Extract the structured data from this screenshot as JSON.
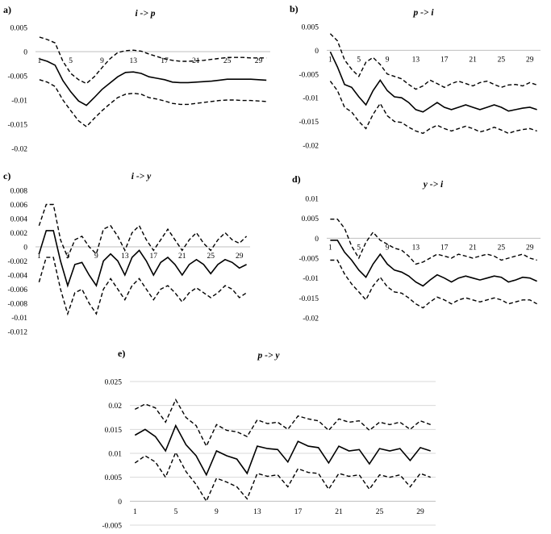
{
  "chart_data": [
    {
      "type": "line",
      "label": "a)",
      "title": "i -> p",
      "x": [
        1,
        2,
        3,
        4,
        5,
        6,
        7,
        8,
        9,
        10,
        11,
        12,
        13,
        14,
        15,
        16,
        17,
        18,
        19,
        20,
        21,
        22,
        23,
        24,
        25,
        26,
        27,
        28,
        29,
        30
      ],
      "x_tick_labels": [
        "5",
        "9",
        "13",
        "17",
        "21",
        "25",
        "29"
      ],
      "x_tick_values": [
        5,
        9,
        13,
        17,
        21,
        25,
        29
      ],
      "first_x_label": "1",
      "ylim": [
        -0.02,
        0.005
      ],
      "y_tick_values": [
        0.005,
        0,
        -0.005,
        -0.01,
        -0.015,
        -0.02
      ],
      "y_tick_labels": [
        "0.005",
        "0",
        "-0.005",
        "-0.01",
        "-0.015",
        "-0.02"
      ],
      "series": [
        {
          "name": "upper",
          "style": "dashed",
          "values": [
            0.003,
            0.0025,
            0.0018,
            -0.002,
            -0.0045,
            -0.0058,
            -0.0066,
            -0.0052,
            -0.0033,
            -0.0015,
            -0.0002,
            0.0002,
            0.0003,
            0.0001,
            -0.0005,
            -0.001,
            -0.0015,
            -0.0018,
            -0.002,
            -0.002,
            -0.0019,
            -0.0018,
            -0.0016,
            -0.0014,
            -0.0012,
            -0.0012,
            -0.0012,
            -0.0013,
            -0.0013,
            -0.0013
          ]
        },
        {
          "name": "estimate",
          "style": "solid",
          "values": [
            -0.0015,
            -0.002,
            -0.0028,
            -0.006,
            -0.0083,
            -0.0102,
            -0.0111,
            -0.0095,
            -0.0078,
            -0.0065,
            -0.0052,
            -0.0043,
            -0.0042,
            -0.0045,
            -0.0052,
            -0.0055,
            -0.0058,
            -0.0063,
            -0.0064,
            -0.0064,
            -0.0063,
            -0.0062,
            -0.0061,
            -0.0059,
            -0.0057,
            -0.0057,
            -0.0057,
            -0.0057,
            -0.0058,
            -0.0059
          ]
        },
        {
          "name": "lower",
          "style": "dashed",
          "values": [
            -0.0058,
            -0.0063,
            -0.0072,
            -0.01,
            -0.0122,
            -0.0143,
            -0.0155,
            -0.0138,
            -0.0122,
            -0.0108,
            -0.0095,
            -0.0088,
            -0.0086,
            -0.0088,
            -0.0095,
            -0.0098,
            -0.0102,
            -0.0107,
            -0.0109,
            -0.0109,
            -0.0107,
            -0.0105,
            -0.0103,
            -0.0101,
            -0.01,
            -0.01,
            -0.0101,
            -0.0101,
            -0.0102,
            -0.0103
          ]
        }
      ]
    },
    {
      "type": "line",
      "label": "b)",
      "title": "p -> i",
      "x": [
        1,
        2,
        3,
        4,
        5,
        6,
        7,
        8,
        9,
        10,
        11,
        12,
        13,
        14,
        15,
        16,
        17,
        18,
        19,
        20,
        21,
        22,
        23,
        24,
        25,
        26,
        27,
        28,
        29,
        30
      ],
      "x_tick_labels": [
        "5",
        "9",
        "13",
        "17",
        "21",
        "25",
        "29"
      ],
      "x_tick_values": [
        5,
        9,
        13,
        17,
        21,
        25,
        29
      ],
      "first_x_label": "1",
      "ylim": [
        -0.02,
        0.005
      ],
      "y_tick_values": [
        0.005,
        0,
        -0.005,
        -0.01,
        -0.015,
        -0.02
      ],
      "y_tick_labels": [
        "0.005",
        "0",
        "-0.005",
        "-0.01",
        "-0.015",
        "-0.02"
      ],
      "series": [
        {
          "name": "upper",
          "style": "dashed",
          "values": [
            0.0035,
            0.002,
            -0.002,
            -0.004,
            -0.0055,
            -0.0025,
            -0.0015,
            -0.003,
            -0.005,
            -0.0055,
            -0.006,
            -0.0072,
            -0.0082,
            -0.0075,
            -0.0063,
            -0.007,
            -0.0078,
            -0.007,
            -0.0065,
            -0.007,
            -0.0075,
            -0.0068,
            -0.0065,
            -0.0072,
            -0.0078,
            -0.0073,
            -0.0072,
            -0.0075,
            -0.0068,
            -0.0073
          ]
        },
        {
          "name": "estimate",
          "style": "solid",
          "values": [
            -0.0003,
            -0.0035,
            -0.0072,
            -0.0078,
            -0.0098,
            -0.0115,
            -0.0085,
            -0.0063,
            -0.0085,
            -0.0098,
            -0.01,
            -0.011,
            -0.0125,
            -0.013,
            -0.012,
            -0.011,
            -0.012,
            -0.0125,
            -0.012,
            -0.0115,
            -0.012,
            -0.0125,
            -0.012,
            -0.0115,
            -0.012,
            -0.0128,
            -0.0125,
            -0.0122,
            -0.012,
            -0.0125
          ]
        },
        {
          "name": "lower",
          "style": "dashed",
          "values": [
            -0.0065,
            -0.0085,
            -0.012,
            -0.013,
            -0.015,
            -0.0165,
            -0.0135,
            -0.0112,
            -0.0138,
            -0.015,
            -0.0152,
            -0.0162,
            -0.017,
            -0.0175,
            -0.0165,
            -0.0158,
            -0.0165,
            -0.017,
            -0.0165,
            -0.016,
            -0.0165,
            -0.0172,
            -0.0168,
            -0.0162,
            -0.0168,
            -0.0175,
            -0.017,
            -0.0167,
            -0.0165,
            -0.017
          ]
        }
      ]
    },
    {
      "type": "line",
      "label": "c)",
      "title": "i -> y",
      "x": [
        1,
        2,
        3,
        4,
        5,
        6,
        7,
        8,
        9,
        10,
        11,
        12,
        13,
        14,
        15,
        16,
        17,
        18,
        19,
        20,
        21,
        22,
        23,
        24,
        25,
        26,
        27,
        28,
        29,
        30
      ],
      "x_tick_labels": [
        "5",
        "9",
        "13",
        "17",
        "21",
        "25",
        "29"
      ],
      "x_tick_values": [
        5,
        9,
        13,
        17,
        21,
        25,
        29
      ],
      "first_x_label": "1",
      "ylim": [
        -0.012,
        0.008
      ],
      "y_tick_values": [
        0.008,
        0.006,
        0.004,
        0.002,
        0,
        -0.002,
        -0.004,
        -0.006,
        -0.008,
        -0.01,
        -0.012
      ],
      "y_tick_labels": [
        "0.008",
        "0.006",
        "0.004",
        "0.002",
        "0",
        "-0.002",
        "-0.004",
        "-0.006",
        "-0.008",
        "-0.01",
        "-0.012"
      ],
      "series": [
        {
          "name": "upper",
          "style": "dashed",
          "values": [
            0.003,
            0.006,
            0.006,
            0.001,
            -0.0015,
            0.001,
            0.0015,
            0,
            -0.001,
            0.0025,
            0.003,
            0.0015,
            -0.0005,
            0.002,
            0.003,
            0.001,
            -0.0005,
            0.001,
            0.0025,
            0.001,
            -0.0005,
            0.001,
            0.002,
            0.0005,
            -0.0005,
            0.001,
            0.002,
            0.001,
            0.0005,
            0.0015
          ]
        },
        {
          "name": "estimate",
          "style": "solid",
          "values": [
            -0.001,
            0.0023,
            0.0023,
            -0.002,
            -0.0055,
            -0.0025,
            -0.0022,
            -0.004,
            -0.0055,
            -0.002,
            -0.001,
            -0.002,
            -0.004,
            -0.0015,
            -0.0005,
            -0.002,
            -0.004,
            -0.0022,
            -0.0015,
            -0.0025,
            -0.004,
            -0.0025,
            -0.0018,
            -0.0025,
            -0.0038,
            -0.0025,
            -0.0018,
            -0.0022,
            -0.003,
            -0.0025
          ]
        },
        {
          "name": "lower",
          "style": "dashed",
          "values": [
            -0.005,
            -0.0015,
            -0.0015,
            -0.006,
            -0.0095,
            -0.0065,
            -0.006,
            -0.008,
            -0.0095,
            -0.006,
            -0.0045,
            -0.006,
            -0.0075,
            -0.0055,
            -0.0045,
            -0.006,
            -0.0075,
            -0.006,
            -0.0055,
            -0.0065,
            -0.0078,
            -0.0065,
            -0.0058,
            -0.0065,
            -0.0072,
            -0.0065,
            -0.0055,
            -0.006,
            -0.0072,
            -0.0065
          ]
        }
      ]
    },
    {
      "type": "line",
      "label": "d)",
      "title": "y -> i",
      "x": [
        1,
        2,
        3,
        4,
        5,
        6,
        7,
        8,
        9,
        10,
        11,
        12,
        13,
        14,
        15,
        16,
        17,
        18,
        19,
        20,
        21,
        22,
        23,
        24,
        25,
        26,
        27,
        28,
        29,
        30
      ],
      "x_tick_labels": [
        "5",
        "9",
        "13",
        "17",
        "21",
        "25",
        "29"
      ],
      "x_tick_values": [
        5,
        9,
        13,
        17,
        21,
        25,
        29
      ],
      "first_x_label": "1",
      "ylim": [
        -0.02,
        0.01
      ],
      "y_tick_values": [
        0.01,
        0.005,
        0,
        -0.005,
        -0.01,
        -0.015,
        -0.02
      ],
      "y_tick_labels": [
        "0.01",
        "0.005",
        "0",
        "-0.005",
        "-0.01",
        "-0.015",
        "-0.02"
      ],
      "series": [
        {
          "name": "upper",
          "style": "dashed",
          "values": [
            0.0048,
            0.0048,
            0.0025,
            -0.002,
            -0.005,
            -0.001,
            0.0015,
            -0.0005,
            -0.0015,
            -0.0025,
            -0.003,
            -0.0045,
            -0.0065,
            -0.006,
            -0.005,
            -0.004,
            -0.0045,
            -0.005,
            -0.004,
            -0.0045,
            -0.005,
            -0.0045,
            -0.004,
            -0.0045,
            -0.0055,
            -0.005,
            -0.0045,
            -0.004,
            -0.005,
            -0.0055
          ]
        },
        {
          "name": "estimate",
          "style": "solid",
          "values": [
            -0.0005,
            -0.0005,
            -0.0035,
            -0.0055,
            -0.008,
            -0.0098,
            -0.0065,
            -0.004,
            -0.0065,
            -0.008,
            -0.0085,
            -0.0095,
            -0.011,
            -0.012,
            -0.0105,
            -0.0092,
            -0.01,
            -0.011,
            -0.01,
            -0.0095,
            -0.01,
            -0.0105,
            -0.01,
            -0.0095,
            -0.0098,
            -0.011,
            -0.0105,
            -0.0098,
            -0.01,
            -0.0108
          ]
        },
        {
          "name": "lower",
          "style": "dashed",
          "values": [
            -0.0055,
            -0.0055,
            -0.009,
            -0.0115,
            -0.0135,
            -0.0155,
            -0.012,
            -0.0098,
            -0.0122,
            -0.0135,
            -0.0138,
            -0.015,
            -0.0165,
            -0.0175,
            -0.016,
            -0.0148,
            -0.0155,
            -0.0165,
            -0.0155,
            -0.015,
            -0.0155,
            -0.016,
            -0.0155,
            -0.015,
            -0.0155,
            -0.0165,
            -0.016,
            -0.0155,
            -0.0155,
            -0.0165
          ]
        }
      ]
    },
    {
      "type": "line",
      "label": "e)",
      "title": "p -> y",
      "x": [
        1,
        2,
        3,
        4,
        5,
        6,
        7,
        8,
        9,
        10,
        11,
        12,
        13,
        14,
        15,
        16,
        17,
        18,
        19,
        20,
        21,
        22,
        23,
        24,
        25,
        26,
        27,
        28,
        29,
        30
      ],
      "x_tick_labels": [
        "1",
        "5",
        "9",
        "13",
        "17",
        "21",
        "25",
        "29"
      ],
      "x_tick_values": [
        1,
        5,
        9,
        13,
        17,
        21,
        25,
        29
      ],
      "ylim": [
        -0.005,
        0.025
      ],
      "y_tick_values": [
        0.025,
        0.02,
        0.015,
        0.01,
        0.005,
        0,
        -0.005
      ],
      "y_tick_labels": [
        "0.025",
        "0.02",
        "0.015",
        "0.01",
        "0.005",
        "0",
        "-0.005"
      ],
      "series": [
        {
          "name": "upper",
          "style": "dashed",
          "values": [
            0.0192,
            0.0203,
            0.0195,
            0.0165,
            0.0212,
            0.0175,
            0.0158,
            0.0115,
            0.016,
            0.0148,
            0.0145,
            0.0135,
            0.017,
            0.0162,
            0.0165,
            0.015,
            0.0178,
            0.0172,
            0.0168,
            0.0148,
            0.0172,
            0.0165,
            0.0168,
            0.0148,
            0.0165,
            0.016,
            0.0165,
            0.015,
            0.0168,
            0.016
          ]
        },
        {
          "name": "estimate",
          "style": "solid",
          "values": [
            0.0138,
            0.015,
            0.0135,
            0.0105,
            0.0158,
            0.0118,
            0.0095,
            0.0055,
            0.0105,
            0.0095,
            0.0088,
            0.0058,
            0.0115,
            0.011,
            0.0108,
            0.0082,
            0.0125,
            0.0115,
            0.0112,
            0.008,
            0.0115,
            0.0105,
            0.0108,
            0.0078,
            0.011,
            0.0105,
            0.011,
            0.0085,
            0.0112,
            0.0105
          ]
        },
        {
          "name": "lower",
          "style": "dashed",
          "values": [
            0.008,
            0.0095,
            0.0082,
            0.005,
            0.0102,
            0.0062,
            0.0035,
            0.0,
            0.0048,
            0.004,
            0.003,
            0.0005,
            0.0058,
            0.0052,
            0.0055,
            0.003,
            0.0068,
            0.006,
            0.0058,
            0.0025,
            0.0058,
            0.0052,
            0.0055,
            0.0025,
            0.0055,
            0.005,
            0.0055,
            0.003,
            0.0058,
            0.005
          ]
        }
      ]
    }
  ]
}
